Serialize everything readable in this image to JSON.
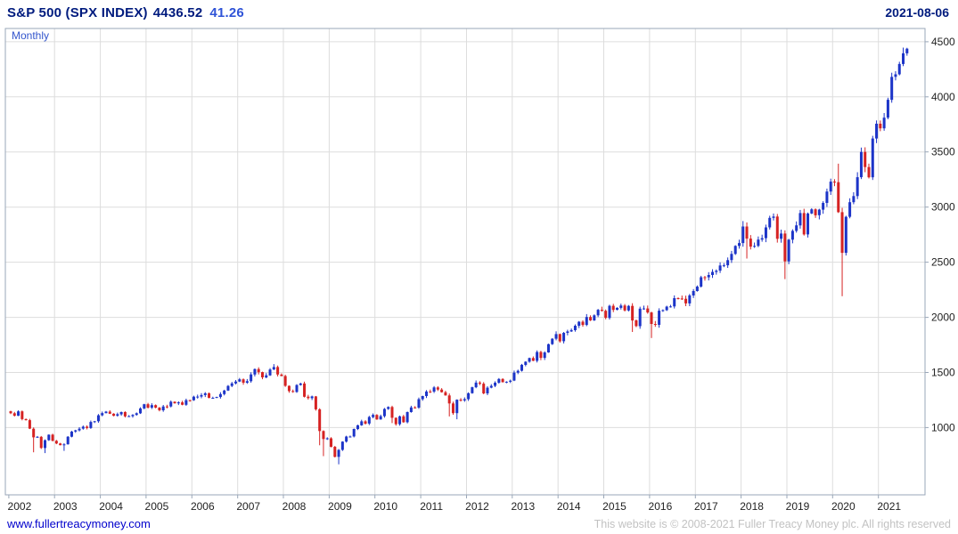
{
  "header": {
    "name": "S&P 500 (SPX INDEX)",
    "price": "4436.52",
    "change": "41.26",
    "date": "2021-08-06"
  },
  "chart_label": "Monthly",
  "footer": {
    "site": "www.fullertreacymoney.com",
    "copyright": "This website is © 2008-2021 Fuller Treacy Money plc. All rights reserved"
  },
  "colors": {
    "up": "#1c34c8",
    "down": "#d62222",
    "grid": "#dddddd",
    "border": "#9aa7b8",
    "axis_text": "#222222",
    "navy": "#001b7e",
    "change_blue": "#2f53d7",
    "link_blue": "#0000cc",
    "muted": "#c2c2c2",
    "timeframe_blue": "#3355cc"
  },
  "chart_data": {
    "type": "candlestick",
    "timeframe": "Monthly",
    "title": "S&P 500 (SPX INDEX)",
    "last_price": 4436.52,
    "change": 41.26,
    "as_of": "2021-08-06",
    "start_month": "2002-01",
    "end_month": "2021-08",
    "prev_close": 1148,
    "closes": [
      1130,
      1107,
      1147,
      1077,
      1067,
      990,
      912,
      916,
      815,
      886,
      936,
      880,
      856,
      841,
      848,
      917,
      964,
      975,
      990,
      1008,
      996,
      1051,
      1058,
      1112,
      1131,
      1145,
      1126,
      1107,
      1121,
      1141,
      1102,
      1104,
      1115,
      1130,
      1174,
      1212,
      1181,
      1204,
      1181,
      1157,
      1192,
      1191,
      1234,
      1220,
      1229,
      1207,
      1249,
      1248,
      1280,
      1281,
      1295,
      1311,
      1270,
      1270,
      1277,
      1304,
      1336,
      1378,
      1401,
      1418,
      1438,
      1407,
      1421,
      1482,
      1531,
      1503,
      1455,
      1474,
      1527,
      1549,
      1481,
      1468,
      1379,
      1331,
      1323,
      1386,
      1400,
      1280,
      1267,
      1283,
      1166,
      969,
      896,
      903,
      826,
      735,
      798,
      873,
      919,
      919,
      987,
      1021,
      1057,
      1036,
      1096,
      1115,
      1074,
      1104,
      1169,
      1187,
      1089,
      1031,
      1102,
      1049,
      1141,
      1183,
      1181,
      1258,
      1286,
      1327,
      1326,
      1364,
      1345,
      1321,
      1292,
      1219,
      1131,
      1253,
      1247,
      1258,
      1312,
      1366,
      1408,
      1398,
      1310,
      1362,
      1379,
      1407,
      1441,
      1412,
      1416,
      1426,
      1498,
      1515,
      1569,
      1598,
      1631,
      1606,
      1686,
      1633,
      1682,
      1757,
      1806,
      1848,
      1783,
      1859,
      1872,
      1884,
      1924,
      1960,
      1931,
      2003,
      1972,
      2018,
      2068,
      2059,
      1995,
      2105,
      2068,
      2086,
      2107,
      2063,
      2104,
      1972,
      1920,
      2079,
      2080,
      2044,
      1940,
      1932,
      2060,
      2065,
      2097,
      2099,
      2174,
      2171,
      2168,
      2126,
      2199,
      2239,
      2279,
      2364,
      2363,
      2384,
      2412,
      2423,
      2470,
      2472,
      2519,
      2575,
      2648,
      2674,
      2824,
      2714,
      2641,
      2648,
      2705,
      2718,
      2816,
      2902,
      2914,
      2712,
      2760,
      2507,
      2704,
      2784,
      2834,
      2946,
      2752,
      2942,
      2980,
      2926,
      2977,
      3038,
      3141,
      3231,
      3226,
      2954,
      2585,
      2912,
      3044,
      3100,
      3271,
      3500,
      3363,
      3270,
      3622,
      3756,
      3714,
      3811,
      3973,
      4181,
      4204,
      4298,
      4395,
      4437
    ],
    "low_overrides": {
      "2002-07": 776,
      "2002-10": 769,
      "2003-03": 789,
      "2008-10": 840,
      "2008-11": 741,
      "2009-03": 667,
      "2010-05": 1041,
      "2011-08": 1101,
      "2011-10": 1075,
      "2015-08": 1867,
      "2016-01": 1812,
      "2018-02": 2533,
      "2018-12": 2347,
      "2020-03": 2192,
      "2021-08": 4373
    },
    "high_overrides": {
      "2007-10": 1576,
      "2018-01": 2873,
      "2020-02": 3394,
      "2021-08": 4445
    },
    "yticks": [
      1000,
      1500,
      2000,
      2500,
      3000,
      3500,
      4000,
      4500
    ],
    "ylim": [
      390,
      4620
    ],
    "year_labels": [
      2002,
      2003,
      2004,
      2005,
      2006,
      2007,
      2008,
      2009,
      2010,
      2011,
      2012,
      2013,
      2014,
      2015,
      2016,
      2017,
      2018,
      2019,
      2020,
      2021
    ],
    "grid": true,
    "y_axis_position": "right"
  }
}
